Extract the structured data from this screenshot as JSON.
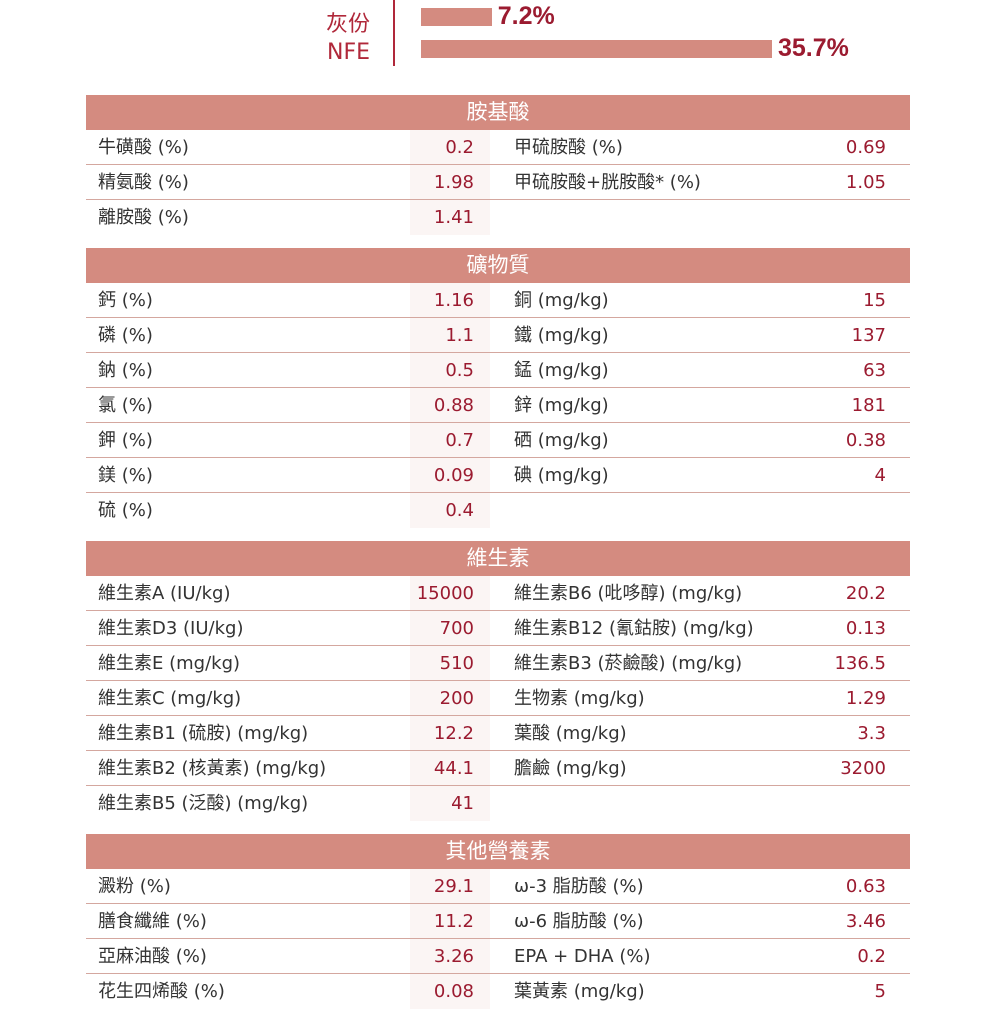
{
  "top_bars": [
    {
      "label": "灰份",
      "value": "7.2%",
      "percent": 7.2
    },
    {
      "label": "NFE",
      "value": "35.7%",
      "percent": 35.7
    }
  ],
  "colors": {
    "header": "#d48b80",
    "value_text": "#9b1b30",
    "bar": "#d48b80"
  },
  "sections": [
    {
      "title": "胺基酸",
      "rows": [
        [
          "牛磺酸 (%)",
          "0.2",
          "甲硫胺酸 (%)",
          "0.69"
        ],
        [
          "精氨酸 (%)",
          "1.98",
          "甲硫胺酸+胱胺酸* (%)",
          "1.05"
        ],
        [
          "離胺酸 (%)",
          "1.41",
          "",
          ""
        ]
      ]
    },
    {
      "title": "礦物質",
      "rows": [
        [
          "鈣 (%)",
          "1.16",
          "銅 (mg/kg)",
          "15"
        ],
        [
          "磷 (%)",
          "1.1",
          "鐵 (mg/kg)",
          "137"
        ],
        [
          "鈉 (%)",
          "0.5",
          "錳 (mg/kg)",
          "63"
        ],
        [
          "氯 (%)",
          "0.88",
          "鋅 (mg/kg)",
          "181"
        ],
        [
          "鉀 (%)",
          "0.7",
          "硒 (mg/kg)",
          "0.38"
        ],
        [
          "鎂 (%)",
          "0.09",
          "碘 (mg/kg)",
          "4"
        ],
        [
          "硫 (%)",
          "0.4",
          "",
          ""
        ]
      ]
    },
    {
      "title": "維生素",
      "rows": [
        [
          "維生素A (IU/kg)",
          "15000",
          "維生素B6 (吡哆醇) (mg/kg)",
          "20.2"
        ],
        [
          "維生素D3 (IU/kg)",
          "700",
          "維生素B12 (氰鈷胺) (mg/kg)",
          "0.13"
        ],
        [
          "維生素E (mg/kg)",
          "510",
          "維生素B3 (菸鹼酸) (mg/kg)",
          "136.5"
        ],
        [
          "維生素C (mg/kg)",
          "200",
          "生物素 (mg/kg)",
          "1.29"
        ],
        [
          "維生素B1 (硫胺) (mg/kg)",
          "12.2",
          "葉酸 (mg/kg)",
          "3.3"
        ],
        [
          "維生素B2 (核黃素) (mg/kg)",
          "44.1",
          "膽鹼 (mg/kg)",
          "3200"
        ],
        [
          "維生素B5 (泛酸) (mg/kg)",
          "41",
          "",
          ""
        ]
      ]
    },
    {
      "title": "其他營養素",
      "rows": [
        [
          "澱粉 (%)",
          "29.1",
          "ω-3 脂肪酸 (%)",
          "0.63"
        ],
        [
          "膳食纖維 (%)",
          "11.2",
          "ω-6 脂肪酸 (%)",
          "3.46"
        ],
        [
          "亞麻油酸 (%)",
          "3.26",
          "EPA + DHA (%)",
          "0.2"
        ],
        [
          "花生四烯酸 (%)",
          "0.08",
          "葉黃素 (mg/kg)",
          "5"
        ]
      ]
    }
  ]
}
